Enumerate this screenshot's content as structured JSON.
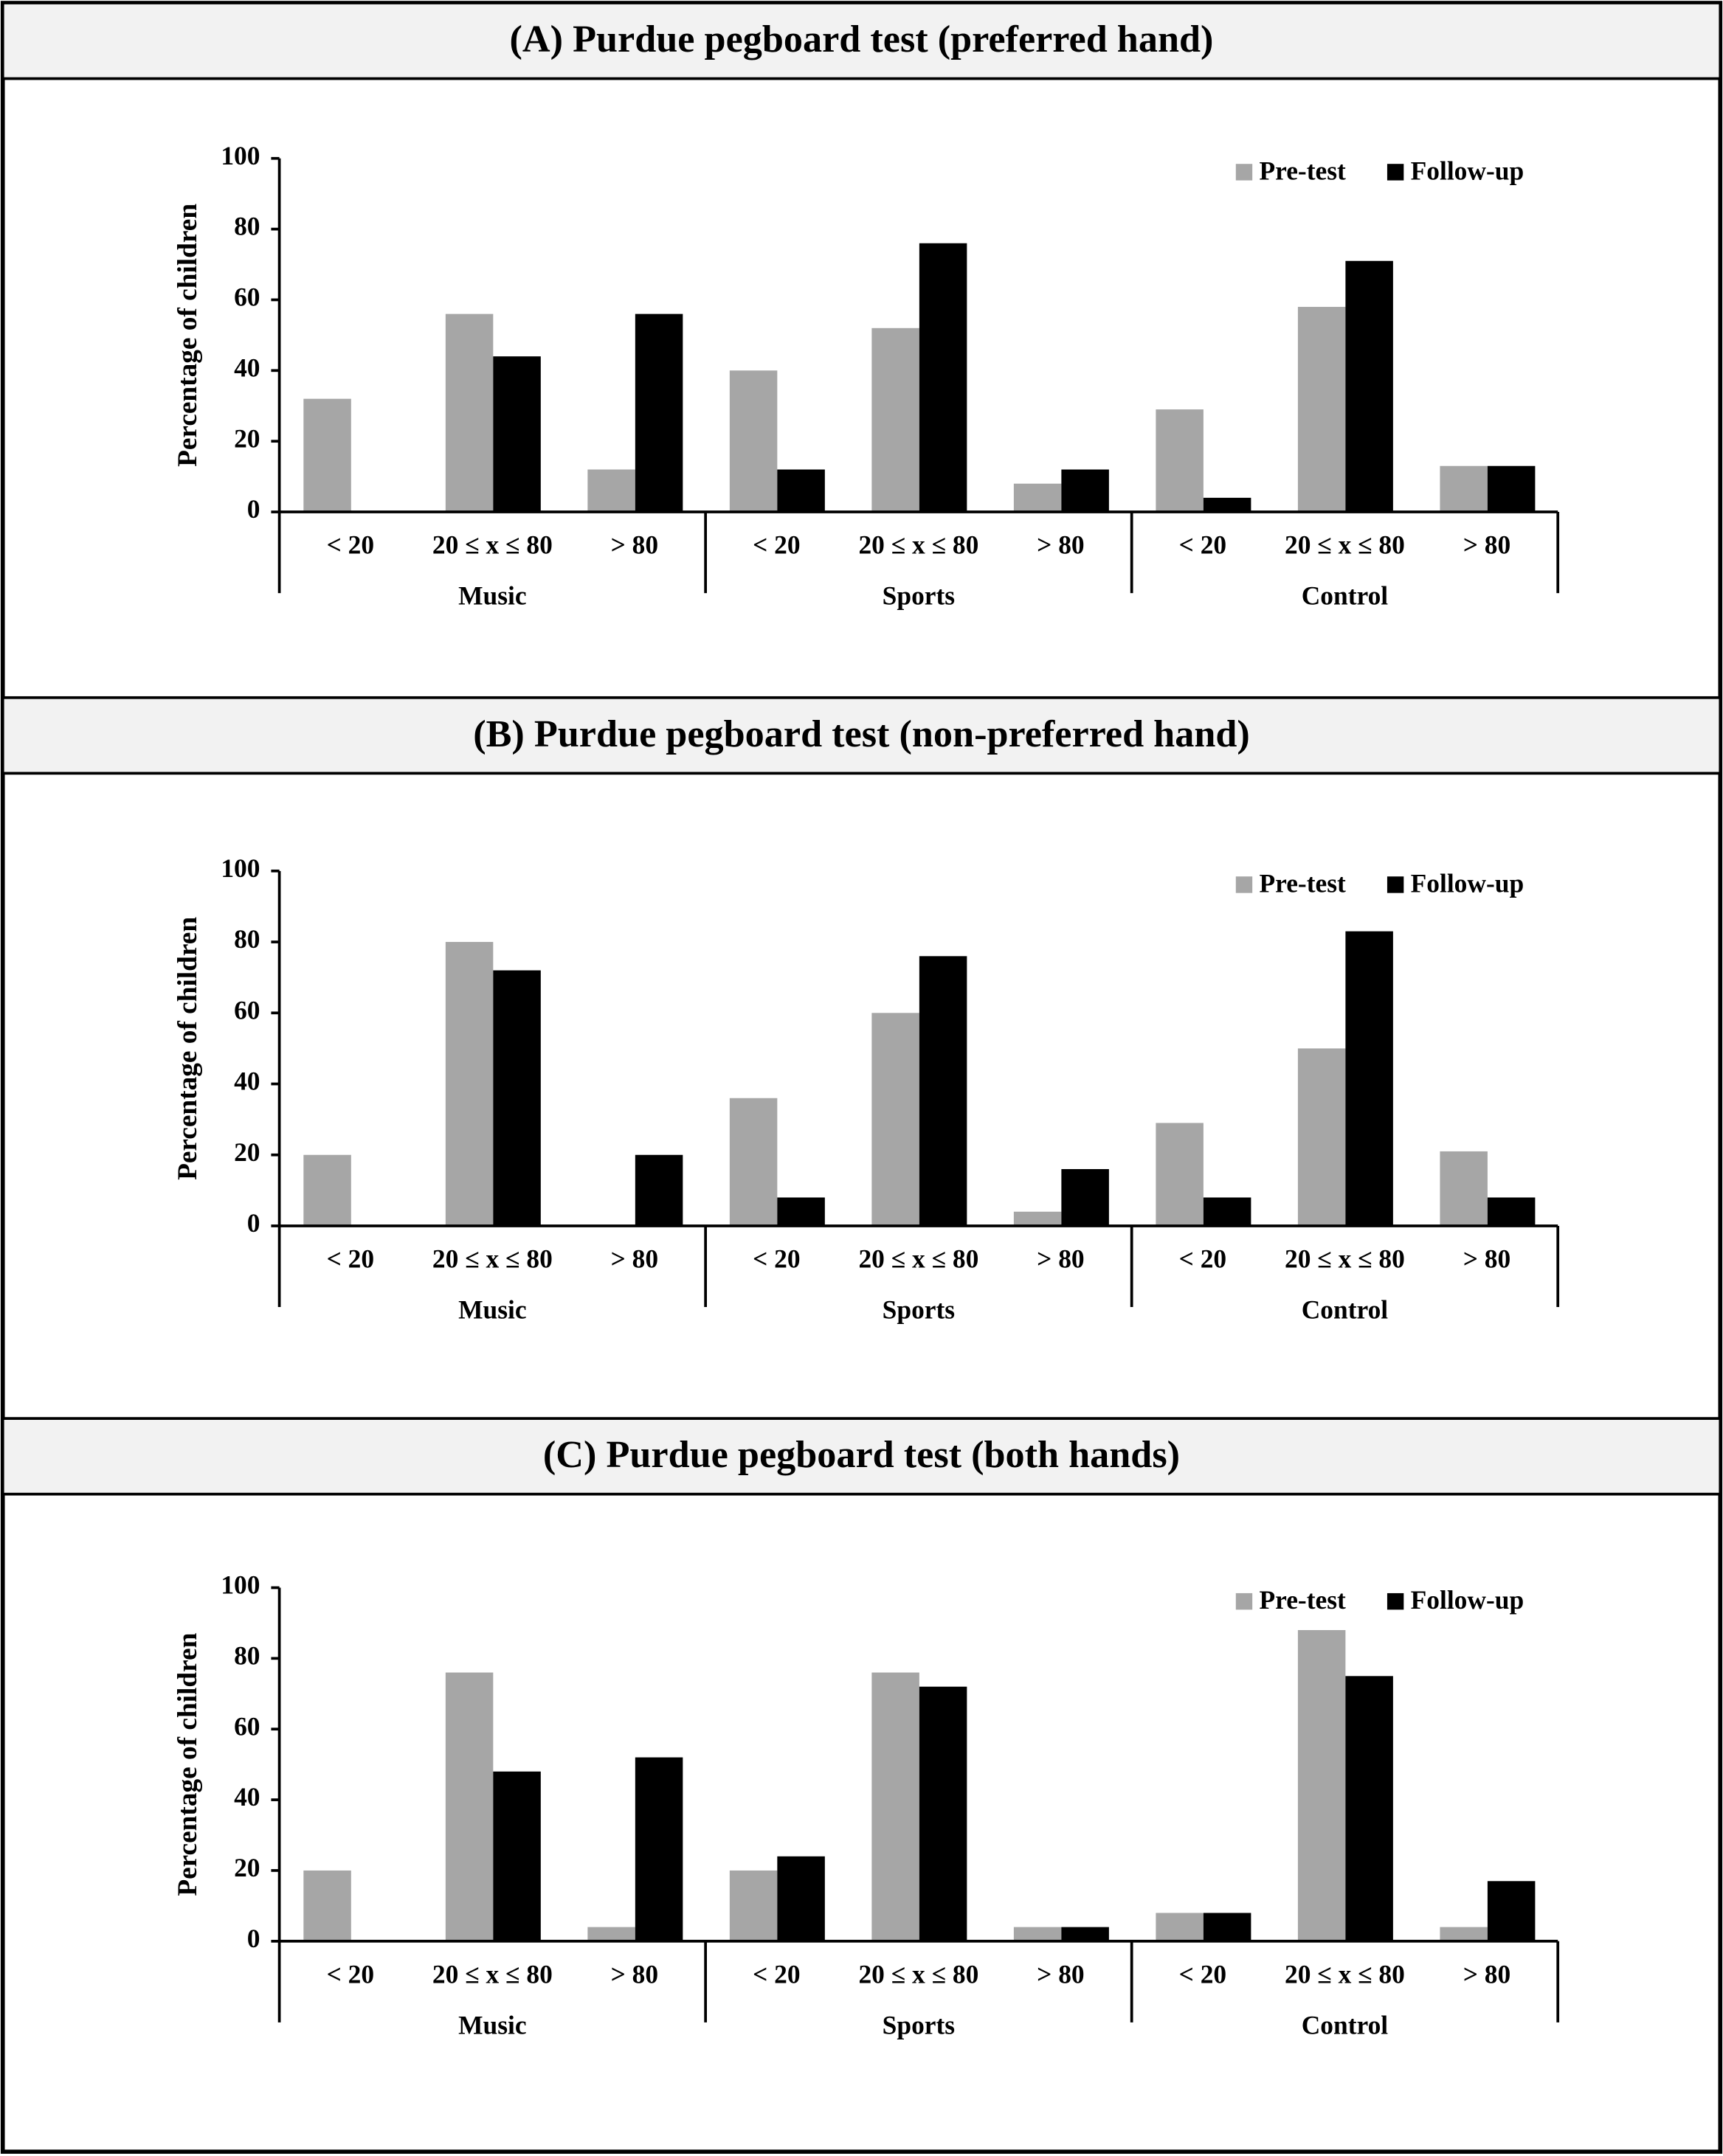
{
  "chart_data": [
    {
      "type": "bar",
      "title": "(A) Purdue pegboard test (preferred hand)",
      "y_label": "Percentage of children",
      "categories": [
        "< 20",
        "20 ≤ x ≤ 80",
        "> 80",
        "< 20",
        "20 ≤ x ≤ 80",
        "> 80",
        "< 20",
        "20 ≤ x ≤ 80",
        "> 80"
      ],
      "groups": [
        "Music",
        "Sports",
        "Control"
      ],
      "series": [
        {
          "name": "Pre-test",
          "color": "#a6a6a6",
          "values": [
            32,
            56,
            12,
            40,
            52,
            8,
            29,
            58,
            13
          ]
        },
        {
          "name": "Follow-up",
          "color": "#000000",
          "values": [
            0,
            44,
            56,
            12,
            76,
            12,
            4,
            71,
            13
          ]
        }
      ],
      "ylim": [
        0,
        100
      ],
      "yticks": [
        0,
        20,
        40,
        60,
        80,
        100
      ],
      "grid": false,
      "legend": "upper right"
    },
    {
      "type": "bar",
      "title": "(B) Purdue pegboard test (non-preferred hand)",
      "y_label": "Percentage of children",
      "categories": [
        "< 20",
        "20 ≤ x ≤ 80",
        "> 80",
        "< 20",
        "20 ≤ x ≤ 80",
        "> 80",
        "< 20",
        "20 ≤ x ≤ 80",
        "> 80"
      ],
      "groups": [
        "Music",
        "Sports",
        "Control"
      ],
      "series": [
        {
          "name": "Pre-test",
          "color": "#a6a6a6",
          "values": [
            20,
            80,
            0,
            36,
            60,
            4,
            29,
            50,
            21
          ]
        },
        {
          "name": "Follow-up",
          "color": "#000000",
          "values": [
            0,
            72,
            20,
            8,
            76,
            16,
            8,
            83,
            8
          ]
        }
      ],
      "ylim": [
        0,
        100
      ],
      "yticks": [
        0,
        20,
        40,
        60,
        80,
        100
      ],
      "grid": false,
      "legend": "upper right"
    },
    {
      "type": "bar",
      "title": "(C) Purdue pegboard test (both hands)",
      "y_label": "Percentage of children",
      "categories": [
        "< 20",
        "20 ≤ x ≤ 80",
        "> 80",
        "< 20",
        "20 ≤ x ≤ 80",
        "> 80",
        "< 20",
        "20 ≤ x ≤ 80",
        "> 80"
      ],
      "groups": [
        "Music",
        "Sports",
        "Control"
      ],
      "series": [
        {
          "name": "Pre-test",
          "color": "#a6a6a6",
          "values": [
            20,
            76,
            4,
            20,
            76,
            4,
            8,
            88,
            4
          ]
        },
        {
          "name": "Follow-up",
          "color": "#000000",
          "values": [
            0,
            48,
            52,
            24,
            72,
            4,
            8,
            75,
            17
          ]
        }
      ],
      "ylim": [
        0,
        100
      ],
      "yticks": [
        0,
        20,
        40,
        60,
        80,
        100
      ],
      "grid": false,
      "legend": "upper right"
    }
  ]
}
